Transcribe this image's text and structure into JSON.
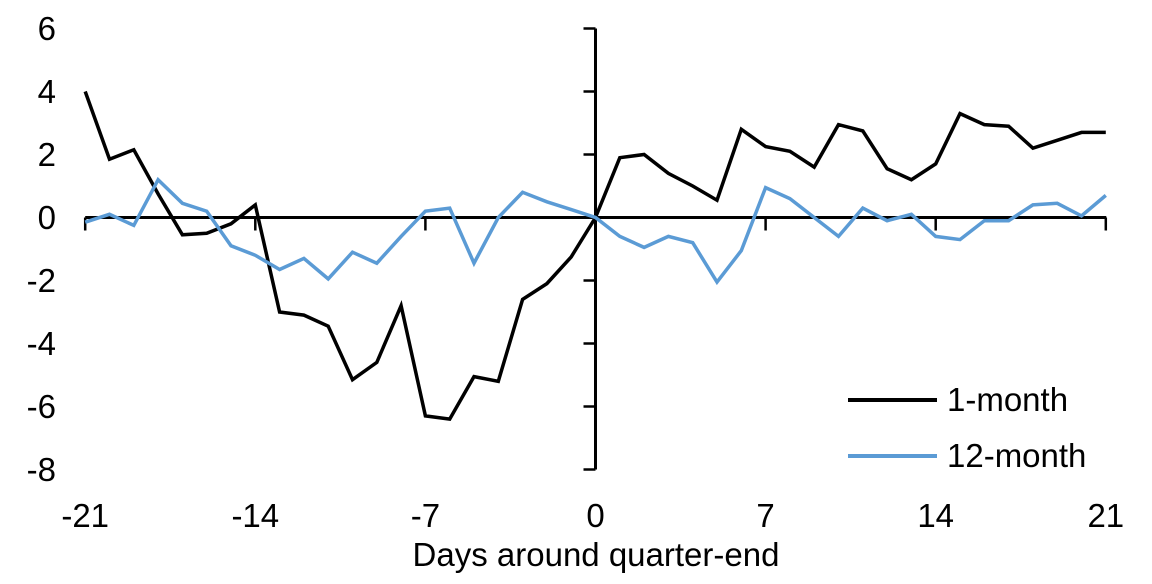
{
  "chart_data": {
    "type": "line",
    "title": "",
    "xlabel": "Days around quarter-end",
    "ylabel": "",
    "xlim": [
      -21,
      21
    ],
    "ylim": [
      -8,
      6
    ],
    "x_ticks": [
      -21,
      -14,
      -7,
      0,
      7,
      14,
      21
    ],
    "y_ticks": [
      6,
      4,
      2,
      0,
      -2,
      -4,
      -6,
      -8
    ],
    "grid": false,
    "legend_position": "lower-right",
    "axis_color": "#000000",
    "x": [
      -21,
      -20,
      -19,
      -18,
      -17,
      -16,
      -15,
      -14,
      -13,
      -12,
      -11,
      -10,
      -9,
      -8,
      -7,
      -6,
      -5,
      -4,
      -3,
      -2,
      -1,
      0,
      1,
      2,
      3,
      4,
      5,
      6,
      7,
      8,
      9,
      10,
      11,
      12,
      13,
      14,
      15,
      16,
      17,
      18,
      19,
      20,
      21
    ],
    "series": [
      {
        "name": "1-month",
        "color": "#000000",
        "values": [
          4.0,
          1.85,
          2.15,
          0.75,
          -0.55,
          -0.5,
          -0.2,
          0.4,
          -3.0,
          -3.1,
          -3.45,
          -5.15,
          -4.6,
          -2.8,
          -6.3,
          -6.4,
          -5.05,
          -5.2,
          -2.6,
          -2.1,
          -1.25,
          0.0,
          1.9,
          2.0,
          1.4,
          1.0,
          0.55,
          2.8,
          2.25,
          2.1,
          1.6,
          2.95,
          2.75,
          1.55,
          1.2,
          1.7,
          3.3,
          2.95,
          2.9,
          2.2,
          2.45,
          2.7,
          2.7
        ]
      },
      {
        "name": "12-month",
        "color": "#5B9BD5",
        "values": [
          -0.15,
          0.1,
          -0.25,
          1.2,
          0.45,
          0.2,
          -0.9,
          -1.2,
          -1.65,
          -1.3,
          -1.95,
          -1.1,
          -1.45,
          -0.6,
          0.2,
          0.3,
          -1.45,
          0.0,
          0.8,
          0.5,
          0.25,
          0.0,
          -0.6,
          -0.95,
          -0.6,
          -0.8,
          -2.05,
          -1.05,
          0.95,
          0.6,
          0.0,
          -0.6,
          0.3,
          -0.1,
          0.1,
          -0.6,
          -0.7,
          -0.1,
          -0.1,
          0.4,
          0.45,
          0.05,
          0.7
        ]
      }
    ]
  }
}
